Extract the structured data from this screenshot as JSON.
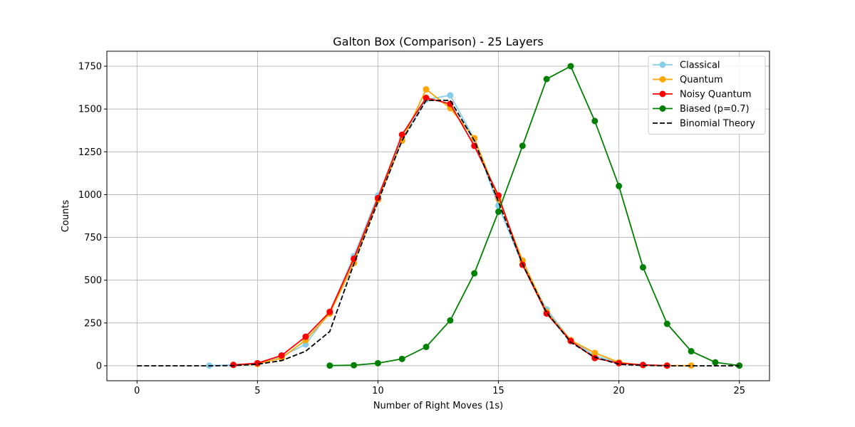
{
  "chart_data": {
    "type": "line",
    "title": "Galton Box (Comparison) - 25 Layers",
    "xlabel": "Number of Right Moves (1s)",
    "ylabel": "Counts",
    "xlim": [
      -1.25,
      26.25
    ],
    "ylim": [
      -87.5,
      1837.5
    ],
    "xticks": [
      0,
      5,
      10,
      15,
      20,
      25
    ],
    "yticks": [
      0,
      250,
      500,
      750,
      1000,
      1250,
      1500,
      1750
    ],
    "grid": true,
    "legend_position": "upper right",
    "series": [
      {
        "name": "Classical",
        "color": "#87ceeb",
        "dashed": false,
        "markers": true,
        "x": [
          3,
          4,
          5,
          6,
          7,
          8,
          9,
          10,
          11,
          12,
          13,
          14,
          15,
          16,
          17,
          18,
          19,
          20,
          21,
          22
        ],
        "y": [
          1,
          5,
          15,
          55,
          125,
          315,
          640,
          995,
          1325,
          1555,
          1580,
          1325,
          935,
          590,
          330,
          150,
          60,
          15,
          5,
          1
        ]
      },
      {
        "name": "Quantum",
        "color": "#ffa500",
        "dashed": false,
        "markers": true,
        "x": [
          4,
          5,
          6,
          7,
          8,
          9,
          10,
          11,
          12,
          13,
          14,
          15,
          16,
          17,
          18,
          19,
          20,
          21,
          22,
          23
        ],
        "y": [
          5,
          10,
          45,
          150,
          305,
          600,
          970,
          1315,
          1615,
          1505,
          1330,
          975,
          615,
          315,
          150,
          75,
          20,
          3,
          1,
          1
        ]
      },
      {
        "name": "Noisy Quantum",
        "color": "#ff0000",
        "dashed": false,
        "markers": true,
        "x": [
          4,
          5,
          6,
          7,
          8,
          9,
          10,
          11,
          12,
          13,
          14,
          15,
          16,
          17,
          18,
          19,
          20,
          21,
          22
        ],
        "y": [
          5,
          15,
          60,
          170,
          315,
          625,
          980,
          1350,
          1565,
          1530,
          1285,
          995,
          590,
          305,
          145,
          45,
          15,
          5,
          1
        ]
      },
      {
        "name": "Biased (p=0.7)",
        "color": "#008000",
        "dashed": false,
        "markers": true,
        "x": [
          8,
          9,
          10,
          11,
          12,
          13,
          14,
          15,
          16,
          17,
          18,
          19,
          20,
          21,
          22,
          23,
          24,
          25
        ],
        "y": [
          1,
          3,
          15,
          40,
          110,
          265,
          540,
          900,
          1285,
          1675,
          1750,
          1430,
          1050,
          575,
          245,
          85,
          20,
          1
        ]
      },
      {
        "name": "Binomial Theory",
        "color": "#000000",
        "dashed": true,
        "markers": false,
        "x": [
          0,
          1,
          2,
          3,
          4,
          5,
          6,
          7,
          8,
          9,
          10,
          11,
          12,
          13,
          14,
          15,
          16,
          17,
          18,
          19,
          20,
          21,
          22,
          23,
          24,
          25
        ],
        "y": [
          0,
          0,
          0,
          0,
          1,
          9,
          30,
          85,
          200,
          594,
          958,
          1316,
          1550,
          1550,
          1316,
          958,
          594,
          312,
          137,
          50,
          9,
          2,
          0,
          0,
          0,
          0
        ]
      }
    ]
  }
}
